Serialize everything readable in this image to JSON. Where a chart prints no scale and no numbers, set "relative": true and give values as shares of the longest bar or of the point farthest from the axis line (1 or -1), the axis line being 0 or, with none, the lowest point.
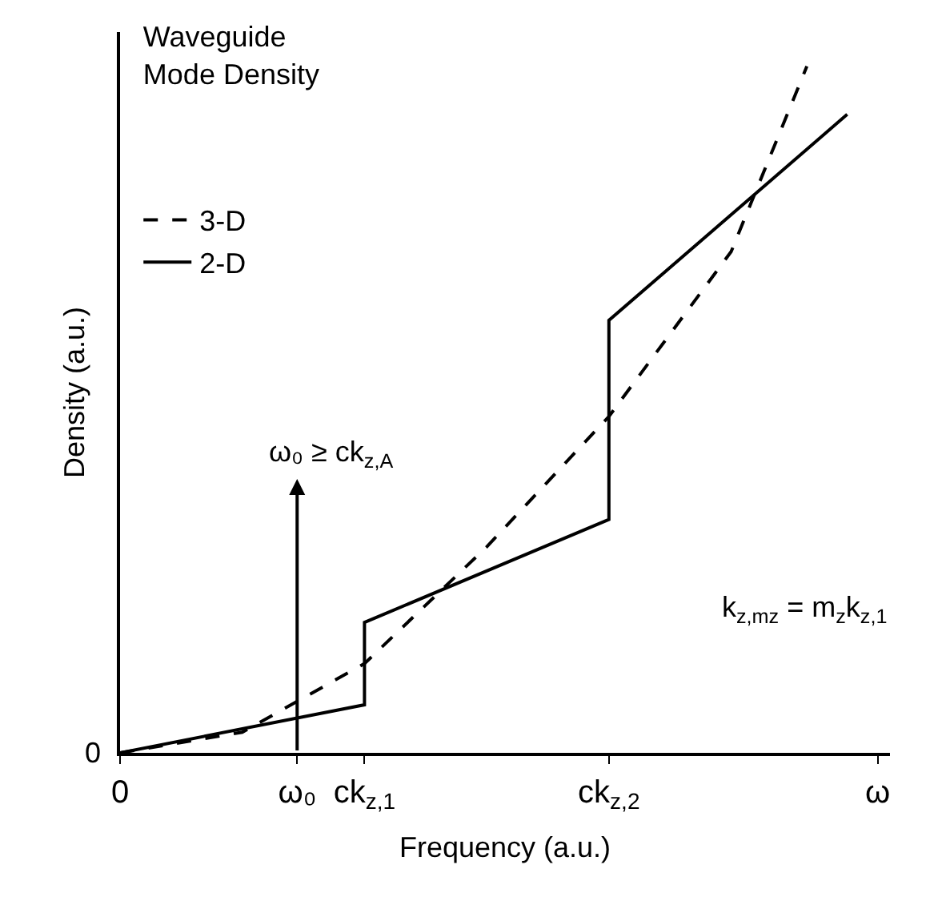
{
  "chart_data": {
    "type": "line",
    "title": "Waveguide\nMode Density",
    "xlabel": "Frequency (a.u.)",
    "ylabel": "Density (a.u.)",
    "relative": true,
    "xlim": [
      0,
      3.15
    ],
    "xticks": [
      {
        "value": 0,
        "label": "0"
      },
      {
        "value": 0.725,
        "label": "ω₀"
      },
      {
        "value": 1,
        "label": "ck$_{z,1}$"
      },
      {
        "value": 2,
        "label": "ck$_{z,2}$"
      },
      {
        "value": 3.1,
        "label": "ω"
      }
    ],
    "series": [
      {
        "name": "3-D",
        "color": "#000000",
        "line_style": "dashed",
        "x": [
          0,
          0.5,
          1,
          1.5,
          2,
          2.5,
          2.81
        ],
        "values": [
          0,
          0.03,
          0.13,
          0.3,
          0.49,
          0.73,
          1
        ]
      },
      {
        "name": "2-D",
        "color": "#000000",
        "line_style": "solid",
        "x": [
          0,
          1,
          1,
          2,
          2,
          2.975
        ],
        "values": [
          0,
          0.07,
          0.19,
          0.34,
          0.63,
          0.93
        ]
      }
    ],
    "annotations": [
      "0",
      "ω₀ ≥ ck$_{z,A}$",
      "k$_{z,mz}$ = m$_{z}$k$_{z,1}$"
    ],
    "legend": "top left"
  }
}
